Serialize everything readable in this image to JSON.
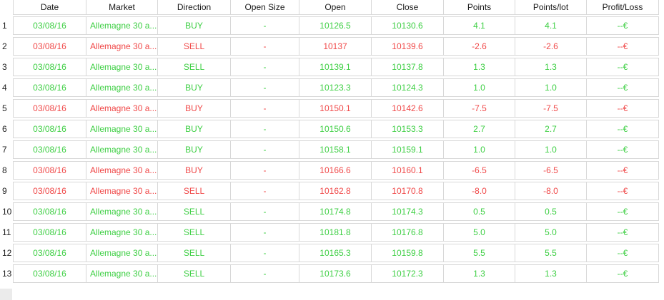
{
  "colors": {
    "gain": "#3ecf44",
    "loss": "#f04848",
    "header_text": "#1a1a1a",
    "grid_border": "#d8d8d8"
  },
  "table": {
    "headers": [
      "Date",
      "Market",
      "Direction",
      "Open Size",
      "Open",
      "Close",
      "Points",
      "Points/lot",
      "Profit/Loss"
    ],
    "rows": [
      {
        "num": "1",
        "date": "03/08/16",
        "market": "Allemagne 30 a...",
        "direction": "BUY",
        "open_size": "-",
        "open": "10126.5",
        "close": "10130.6",
        "points": "4.1",
        "points_per_lot": "4.1",
        "profit_loss": "--€",
        "status": "gain"
      },
      {
        "num": "2",
        "date": "03/08/16",
        "market": "Allemagne 30 a...",
        "direction": "SELL",
        "open_size": "-",
        "open": "10137",
        "close": "10139.6",
        "points": "-2.6",
        "points_per_lot": "-2.6",
        "profit_loss": "--€",
        "status": "loss"
      },
      {
        "num": "3",
        "date": "03/08/16",
        "market": "Allemagne 30 a...",
        "direction": "SELL",
        "open_size": "-",
        "open": "10139.1",
        "close": "10137.8",
        "points": "1.3",
        "points_per_lot": "1.3",
        "profit_loss": "--€",
        "status": "gain"
      },
      {
        "num": "4",
        "date": "03/08/16",
        "market": "Allemagne 30 a...",
        "direction": "BUY",
        "open_size": "-",
        "open": "10123.3",
        "close": "10124.3",
        "points": "1.0",
        "points_per_lot": "1.0",
        "profit_loss": "--€",
        "status": "gain"
      },
      {
        "num": "5",
        "date": "03/08/16",
        "market": "Allemagne 30 a...",
        "direction": "BUY",
        "open_size": "-",
        "open": "10150.1",
        "close": "10142.6",
        "points": "-7.5",
        "points_per_lot": "-7.5",
        "profit_loss": "--€",
        "status": "loss"
      },
      {
        "num": "6",
        "date": "03/08/16",
        "market": "Allemagne 30 a...",
        "direction": "BUY",
        "open_size": "-",
        "open": "10150.6",
        "close": "10153.3",
        "points": "2.7",
        "points_per_lot": "2.7",
        "profit_loss": "--€",
        "status": "gain"
      },
      {
        "num": "7",
        "date": "03/08/16",
        "market": "Allemagne 30 a...",
        "direction": "BUY",
        "open_size": "-",
        "open": "10158.1",
        "close": "10159.1",
        "points": "1.0",
        "points_per_lot": "1.0",
        "profit_loss": "--€",
        "status": "gain"
      },
      {
        "num": "8",
        "date": "03/08/16",
        "market": "Allemagne 30 a...",
        "direction": "BUY",
        "open_size": "-",
        "open": "10166.6",
        "close": "10160.1",
        "points": "-6.5",
        "points_per_lot": "-6.5",
        "profit_loss": "--€",
        "status": "loss"
      },
      {
        "num": "9",
        "date": "03/08/16",
        "market": "Allemagne 30 a...",
        "direction": "SELL",
        "open_size": "-",
        "open": "10162.8",
        "close": "10170.8",
        "points": "-8.0",
        "points_per_lot": "-8.0",
        "profit_loss": "--€",
        "status": "loss"
      },
      {
        "num": "10",
        "date": "03/08/16",
        "market": "Allemagne 30 a...",
        "direction": "SELL",
        "open_size": "-",
        "open": "10174.8",
        "close": "10174.3",
        "points": "0.5",
        "points_per_lot": "0.5",
        "profit_loss": "--€",
        "status": "gain"
      },
      {
        "num": "11",
        "date": "03/08/16",
        "market": "Allemagne 30 a...",
        "direction": "SELL",
        "open_size": "-",
        "open": "10181.8",
        "close": "10176.8",
        "points": "5.0",
        "points_per_lot": "5.0",
        "profit_loss": "--€",
        "status": "gain"
      },
      {
        "num": "12",
        "date": "03/08/16",
        "market": "Allemagne 30 a...",
        "direction": "SELL",
        "open_size": "-",
        "open": "10165.3",
        "close": "10159.8",
        "points": "5.5",
        "points_per_lot": "5.5",
        "profit_loss": "--€",
        "status": "gain"
      },
      {
        "num": "13",
        "date": "03/08/16",
        "market": "Allemagne 30 a...",
        "direction": "SELL",
        "open_size": "-",
        "open": "10173.6",
        "close": "10172.3",
        "points": "1.3",
        "points_per_lot": "1.3",
        "profit_loss": "--€",
        "status": "gain"
      }
    ]
  }
}
